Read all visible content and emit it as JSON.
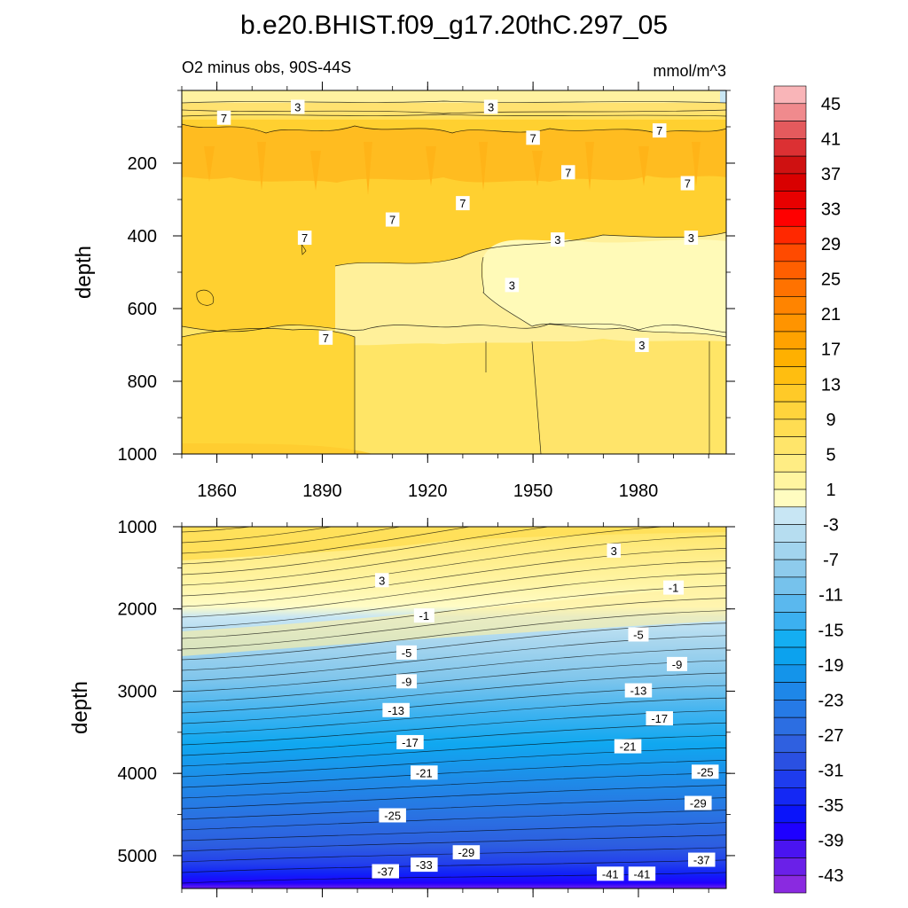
{
  "figure": {
    "title": "b.e20.BHIST.f09_g17.20thC.297_05",
    "subtitle_left": "O2 minus obs, 90S-44S",
    "subtitle_right": "mmol/m^3"
  },
  "chart_data": [
    {
      "type": "heatmap",
      "panel": "upper",
      "description_key": "upper ocean",
      "ylabel": "depth",
      "yticks": [
        "200",
        "400",
        "600",
        "800",
        "1000"
      ],
      "ylim": [
        0,
        1000
      ],
      "xlim": [
        1850,
        2005
      ],
      "xticks": [
        "1860",
        "1890",
        "1920",
        "1950",
        "1980"
      ],
      "contour_labels": [
        {
          "text": "3",
          "x": 1883,
          "y": 45
        },
        {
          "text": "3",
          "x": 1938,
          "y": 45
        },
        {
          "text": "7",
          "x": 1862,
          "y": 75
        },
        {
          "text": "7",
          "x": 1950,
          "y": 130
        },
        {
          "text": "7",
          "x": 1986,
          "y": 110
        },
        {
          "text": "7",
          "x": 1960,
          "y": 225
        },
        {
          "text": "7",
          "x": 1994,
          "y": 255
        },
        {
          "text": "7",
          "x": 1930,
          "y": 310
        },
        {
          "text": "7",
          "x": 1910,
          "y": 355
        },
        {
          "text": "7",
          "x": 1885,
          "y": 405
        },
        {
          "text": "3",
          "x": 1957,
          "y": 410
        },
        {
          "text": "3",
          "x": 1995,
          "y": 405
        },
        {
          "text": "3",
          "x": 1944,
          "y": 535
        },
        {
          "text": "7",
          "x": 1891,
          "y": 680
        },
        {
          "text": "3",
          "x": 1981,
          "y": 700
        }
      ]
    },
    {
      "type": "heatmap",
      "panel": "lower",
      "ylabel": "depth",
      "yticks": [
        "1000",
        "2000",
        "3000",
        "4000",
        "5000"
      ],
      "ylim": [
        1000,
        5400
      ],
      "xlim": [
        1850,
        2005
      ],
      "contour_labels": [
        {
          "text": "3",
          "x": 1973,
          "y": 1290
        },
        {
          "text": "3",
          "x": 1907,
          "y": 1650
        },
        {
          "text": "-1",
          "x": 1990,
          "y": 1740
        },
        {
          "text": "-1",
          "x": 1919,
          "y": 2080
        },
        {
          "text": "-5",
          "x": 1980,
          "y": 2310
        },
        {
          "text": "-5",
          "x": 1914,
          "y": 2530
        },
        {
          "text": "-9",
          "x": 1991,
          "y": 2670
        },
        {
          "text": "-9",
          "x": 1914,
          "y": 2880
        },
        {
          "text": "-13",
          "x": 1980,
          "y": 2990
        },
        {
          "text": "-13",
          "x": 1911,
          "y": 3230
        },
        {
          "text": "-17",
          "x": 1986,
          "y": 3330
        },
        {
          "text": "-17",
          "x": 1915,
          "y": 3620
        },
        {
          "text": "-21",
          "x": 1977,
          "y": 3670
        },
        {
          "text": "-21",
          "x": 1919,
          "y": 3990
        },
        {
          "text": "-25",
          "x": 1999,
          "y": 3980
        },
        {
          "text": "-29",
          "x": 1997,
          "y": 4360
        },
        {
          "text": "-25",
          "x": 1910,
          "y": 4510
        },
        {
          "text": "-29",
          "x": 1931,
          "y": 4960
        },
        {
          "text": "-37",
          "x": 1998,
          "y": 5050
        },
        {
          "text": "-37",
          "x": 1908,
          "y": 5190
        },
        {
          "text": "-33",
          "x": 1919,
          "y": 5110
        },
        {
          "text": "-41",
          "x": 1972,
          "y": 5220
        },
        {
          "text": "-41",
          "x": 1981,
          "y": 5220
        }
      ]
    }
  ],
  "colorbar": {
    "labels": [
      "45",
      "41",
      "37",
      "33",
      "29",
      "25",
      "21",
      "17",
      "13",
      "9",
      "5",
      "1",
      "-3",
      "-7",
      "-11",
      "-15",
      "-19",
      "-23",
      "-27",
      "-31",
      "-35",
      "-39",
      "-43"
    ],
    "colors": [
      "#f9b5b8",
      "#f08a8d",
      "#e45a5d",
      "#dc3033",
      "#cf1111",
      "#d90000",
      "#e80000",
      "#ff0000",
      "#ff2800",
      "#ff4a00",
      "#ff5f00",
      "#ff7200",
      "#ff8400",
      "#ff9400",
      "#ffa200",
      "#ffb000",
      "#ffbe10",
      "#ffca28",
      "#ffd43c",
      "#ffdd52",
      "#ffe56a",
      "#ffed84",
      "#fff5a0",
      "#fffcc0",
      "#c8e6f4",
      "#b6ddf0",
      "#a2d4ee",
      "#8ecbec",
      "#76c2ec",
      "#5ab8ee",
      "#3cb0f0",
      "#14aef2",
      "#0ca2ee",
      "#1494ea",
      "#1e87e8",
      "#267ae6",
      "#2c6ee2",
      "#2f60e0",
      "#2a50e2",
      "#1e3cee",
      "#1428f4",
      "#0a14fa",
      "#1e00ff",
      "#4a14f0",
      "#6a20e8",
      "#8a2ae0"
    ]
  }
}
